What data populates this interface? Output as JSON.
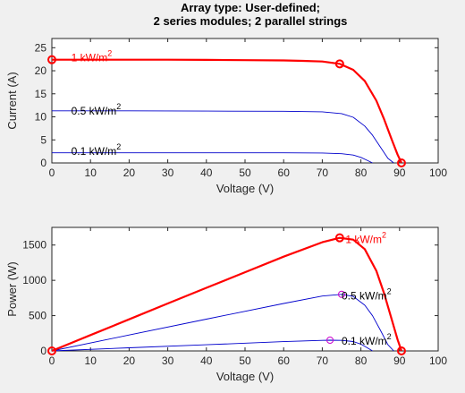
{
  "figure": {
    "title_line1": "Array type: User-defined;",
    "title_line2": "2 series modules; 2 parallel strings",
    "background": "#f0f0f0"
  },
  "chart_data": [
    {
      "type": "line",
      "xlabel": "Voltage (V)",
      "ylabel": "Current (A)",
      "xlim": [
        0,
        100
      ],
      "ylim": [
        0,
        27
      ],
      "xticks": [
        "0",
        "10",
        "20",
        "30",
        "40",
        "50",
        "60",
        "70",
        "80",
        "90",
        "100"
      ],
      "yticks": [
        "0",
        "5",
        "10",
        "15",
        "20",
        "25"
      ],
      "grid": false,
      "series": [
        {
          "name": "1 kW/m2",
          "label_base": "1 kW/m",
          "label_sup": "2",
          "color": "#ff0000",
          "x": [
            0,
            10,
            20,
            30,
            40,
            50,
            60,
            65,
            70,
            74.5,
            78,
            81,
            84,
            86,
            88,
            89.5,
            90.5
          ],
          "y": [
            22.4,
            22.4,
            22.4,
            22.4,
            22.35,
            22.3,
            22.25,
            22.15,
            22.0,
            21.5,
            20.2,
            17.8,
            13.5,
            9.5,
            5.0,
            1.8,
            0
          ],
          "markers": [
            [
              0,
              22.4
            ],
            [
              74.5,
              21.5
            ],
            [
              90.5,
              0
            ]
          ]
        },
        {
          "name": "0.5 kW/m2",
          "label_base": "0.5 kW/m",
          "label_sup": "2",
          "color": "#0000cc",
          "x": [
            0,
            20,
            40,
            60,
            70,
            75,
            78,
            81,
            83,
            85,
            87,
            88.5
          ],
          "y": [
            11.3,
            11.3,
            11.25,
            11.2,
            11.1,
            10.7,
            9.9,
            8.0,
            6.0,
            3.5,
            1.0,
            0
          ],
          "markers": []
        },
        {
          "name": "0.1 kW/m2",
          "label_base": "0.1 kW/m",
          "label_sup": "2",
          "color": "#0000cc",
          "x": [
            0,
            20,
            40,
            60,
            70,
            75,
            78,
            80,
            81.5,
            83
          ],
          "y": [
            2.2,
            2.2,
            2.2,
            2.2,
            2.15,
            2.0,
            1.7,
            1.2,
            0.6,
            0
          ],
          "markers": []
        }
      ]
    },
    {
      "type": "line",
      "xlabel": "Voltage (V)",
      "ylabel": "Power (W)",
      "xlim": [
        0,
        100
      ],
      "ylim": [
        0,
        1750
      ],
      "xticks": [
        "0",
        "10",
        "20",
        "30",
        "40",
        "50",
        "60",
        "70",
        "80",
        "90",
        "100"
      ],
      "yticks": [
        "0",
        "500",
        "1000",
        "1500"
      ],
      "grid": false,
      "series": [
        {
          "name": "1 kW/m2",
          "label_base": "1 kW/m",
          "label_sup": "2",
          "color": "#ff0000",
          "x": [
            0,
            10,
            20,
            30,
            40,
            50,
            60,
            70,
            74.5,
            78,
            81,
            84,
            86,
            88,
            89.5,
            90.5
          ],
          "y": [
            0,
            224,
            448,
            672,
            894,
            1115,
            1335,
            1540,
            1602,
            1576,
            1442,
            1134,
            817,
            440,
            161,
            0
          ],
          "markers": [
            [
              0,
              0
            ],
            [
              74.5,
              1602
            ],
            [
              90.5,
              0
            ]
          ]
        },
        {
          "name": "0.5 kW/m2",
          "label_base": "0.5 kW/m",
          "label_sup": "2",
          "color": "#0000cc",
          "x": [
            0,
            20,
            40,
            60,
            70,
            75,
            78,
            81,
            83,
            85,
            87,
            88.5
          ],
          "y": [
            0,
            226,
            450,
            672,
            777,
            802,
            772,
            648,
            498,
            298,
            87,
            0
          ],
          "markers": [
            [
              75,
              802
            ]
          ],
          "marker_color": "#cc00cc"
        },
        {
          "name": "0.1 kW/m2",
          "label_base": "0.1 kW/m",
          "label_sup": "2",
          "color": "#0000cc",
          "x": [
            0,
            20,
            40,
            60,
            70,
            72,
            75,
            78,
            80,
            81.5,
            83
          ],
          "y": [
            0,
            44,
            88,
            132,
            150,
            152,
            150,
            133,
            96,
            49,
            0
          ],
          "markers": [
            [
              72,
              152
            ]
          ],
          "marker_color": "#cc00cc"
        }
      ]
    }
  ]
}
